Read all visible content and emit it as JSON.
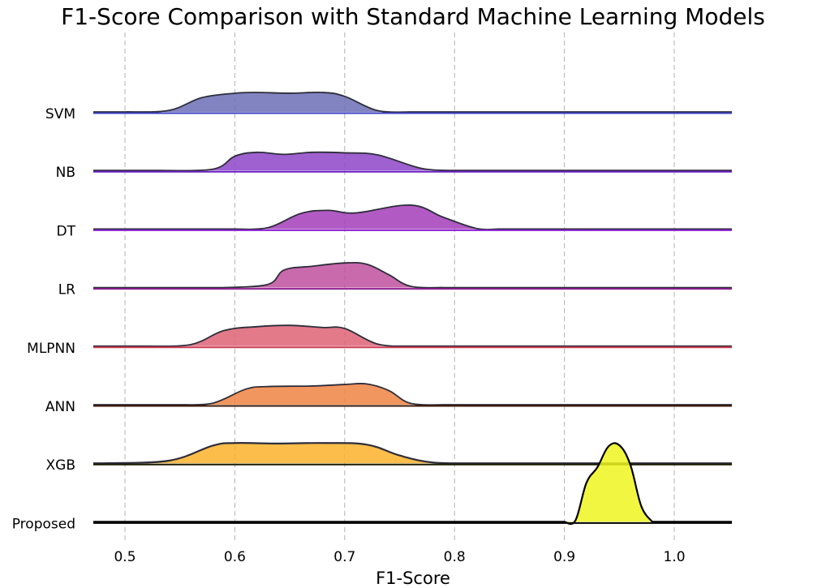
{
  "chart_data": {
    "type": "ridgeline",
    "title": "F1-Score Comparison with Standard Machine Learning Models",
    "xlabel": "F1-Score",
    "xlim": [
      0.47,
      1.055
    ],
    "x_ticks": [
      "0.5",
      "0.6",
      "0.7",
      "0.8",
      "0.9",
      "1.0"
    ],
    "grid": "vertical dashed",
    "series": [
      {
        "name": "SVM",
        "color": "#6b6fb5",
        "baseline_color": "#3a3fc0",
        "density": [
          [
            0.5,
            0.0
          ],
          [
            0.54,
            0.06
          ],
          [
            0.57,
            0.55
          ],
          [
            0.6,
            0.72
          ],
          [
            0.62,
            0.75
          ],
          [
            0.65,
            0.72
          ],
          [
            0.68,
            0.75
          ],
          [
            0.7,
            0.6
          ],
          [
            0.73,
            0.05
          ],
          [
            0.76,
            0.0
          ]
        ]
      },
      {
        "name": "NB",
        "color": "#8d45c7",
        "baseline_color": "#6a1fc2",
        "density": [
          [
            0.53,
            0.0
          ],
          [
            0.58,
            0.05
          ],
          [
            0.6,
            0.55
          ],
          [
            0.62,
            0.7
          ],
          [
            0.645,
            0.62
          ],
          [
            0.67,
            0.7
          ],
          [
            0.7,
            0.68
          ],
          [
            0.73,
            0.6
          ],
          [
            0.77,
            0.08
          ],
          [
            0.8,
            0.0
          ]
        ]
      },
      {
        "name": "DT",
        "color": "#a43dba",
        "baseline_color": "#8a1fd0",
        "density": [
          [
            0.6,
            0.0
          ],
          [
            0.63,
            0.05
          ],
          [
            0.66,
            0.6
          ],
          [
            0.685,
            0.72
          ],
          [
            0.71,
            0.62
          ],
          [
            0.76,
            0.92
          ],
          [
            0.79,
            0.45
          ],
          [
            0.82,
            0.02
          ],
          [
            0.84,
            0.0
          ]
        ]
      },
      {
        "name": "LR",
        "color": "#c0509f",
        "baseline_color": "#8e1e8f",
        "density": [
          [
            0.59,
            0.0
          ],
          [
            0.63,
            0.12
          ],
          [
            0.645,
            0.68
          ],
          [
            0.67,
            0.82
          ],
          [
            0.7,
            0.95
          ],
          [
            0.72,
            0.9
          ],
          [
            0.74,
            0.5
          ],
          [
            0.76,
            0.05
          ],
          [
            0.79,
            0.0
          ]
        ]
      },
      {
        "name": "MLPNN",
        "color": "#dd6375",
        "baseline_color": "#c93a52",
        "density": [
          [
            0.52,
            0.0
          ],
          [
            0.56,
            0.06
          ],
          [
            0.59,
            0.6
          ],
          [
            0.62,
            0.75
          ],
          [
            0.65,
            0.8
          ],
          [
            0.68,
            0.72
          ],
          [
            0.7,
            0.68
          ],
          [
            0.73,
            0.08
          ],
          [
            0.76,
            0.0
          ]
        ]
      },
      {
        "name": "ANN",
        "color": "#f08443",
        "baseline_color": "#3b1808",
        "density": [
          [
            0.55,
            0.0
          ],
          [
            0.58,
            0.06
          ],
          [
            0.61,
            0.6
          ],
          [
            0.63,
            0.7
          ],
          [
            0.67,
            0.72
          ],
          [
            0.7,
            0.78
          ],
          [
            0.72,
            0.8
          ],
          [
            0.74,
            0.55
          ],
          [
            0.76,
            0.05
          ],
          [
            0.79,
            0.0
          ]
        ]
      },
      {
        "name": "XGB",
        "color": "#fcb12b",
        "baseline_color": "#1a1a00",
        "density": [
          [
            0.48,
            0.0
          ],
          [
            0.54,
            0.1
          ],
          [
            0.58,
            0.68
          ],
          [
            0.6,
            0.78
          ],
          [
            0.64,
            0.76
          ],
          [
            0.68,
            0.78
          ],
          [
            0.72,
            0.72
          ],
          [
            0.75,
            0.3
          ],
          [
            0.78,
            0.03
          ],
          [
            0.82,
            0.0
          ]
        ]
      },
      {
        "name": "Proposed",
        "color": "#eef51e",
        "baseline_color": "#000000",
        "density": [
          [
            0.9,
            0.0
          ],
          [
            0.91,
            0.05
          ],
          [
            0.92,
            1.5
          ],
          [
            0.93,
            2.1
          ],
          [
            0.94,
            2.9
          ],
          [
            0.95,
            2.95
          ],
          [
            0.96,
            2.2
          ],
          [
            0.97,
            0.6
          ],
          [
            0.98,
            0.0
          ]
        ]
      }
    ]
  }
}
